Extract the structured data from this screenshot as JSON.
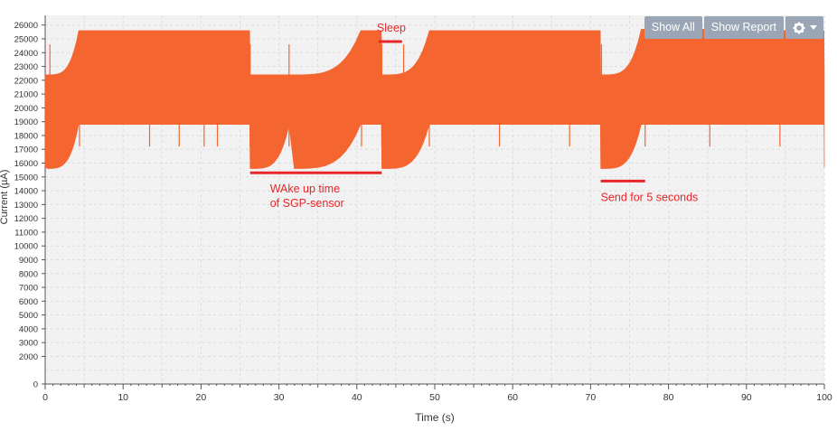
{
  "toolbar": {
    "show_all_label": "Show All",
    "show_report_label": "Show Report",
    "settings_icon": "gear-icon",
    "dropdown_icon": "caret-down-icon"
  },
  "chart_data": {
    "type": "area",
    "xlabel": "Time (s)",
    "ylabel": "Current (µA)",
    "xlim": [
      0,
      100
    ],
    "ylim": [
      0,
      26000
    ],
    "x_ticks": [
      "0",
      "10",
      "20",
      "30",
      "40",
      "50",
      "60",
      "70",
      "80",
      "90",
      "100"
    ],
    "y_ticks": [
      "0",
      "2000",
      "3000",
      "4000",
      "5000",
      "6000",
      "7000",
      "8000",
      "9000",
      "10000",
      "11000",
      "12000",
      "13000",
      "14000",
      "15000",
      "16000",
      "17000",
      "18000",
      "19000",
      "20000",
      "21000",
      "22000",
      "23000",
      "24000",
      "25000",
      "26000"
    ],
    "grid": true,
    "series": [
      {
        "color": "#f4652f",
        "envelope_x": [
          0,
          4.3,
          13.3,
          22.1,
          26.3,
          31.3,
          40.5,
          43.2,
          49.3,
          58.3,
          67.3,
          71.3,
          76.5,
          85.3,
          94.3,
          100
        ],
        "envelope_upper": [
          22400,
          25600,
          25600,
          25600,
          22400,
          22400,
          25600,
          22400,
          25600,
          25600,
          25600,
          22400,
          25700,
          25600,
          25600,
          22600
        ],
        "envelope_lower": [
          15700,
          18800,
          18800,
          18800,
          15600,
          18700,
          18800,
          15600,
          18800,
          18800,
          18800,
          15600,
          18800,
          18800,
          18800,
          15700
        ]
      }
    ],
    "annotations": [
      {
        "text": "Sleep",
        "x_range": [
          42.8,
          45.8
        ],
        "y": 24800,
        "color": "#e8262a"
      },
      {
        "text": "WAke up time\nof SGP-sensor",
        "x_range": [
          26.3,
          43.2
        ],
        "y": 15300,
        "color": "#e8262a"
      },
      {
        "text": "Send for 5 seconds",
        "x_range": [
          71.3,
          77.0
        ],
        "y": 14700,
        "color": "#e8262a"
      }
    ]
  }
}
